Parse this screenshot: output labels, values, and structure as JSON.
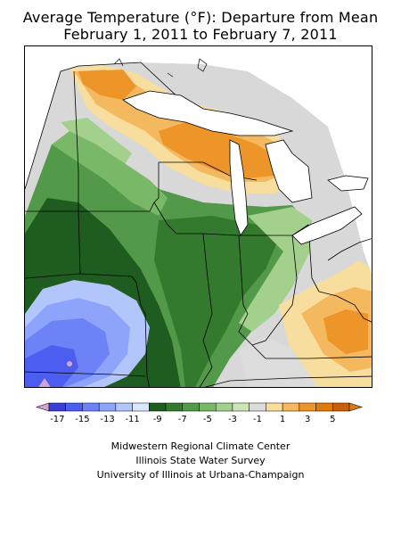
{
  "title": {
    "line1": "Average Temperature (°F): Departure from Mean",
    "line2": "February 1, 2011 to February 7, 2011"
  },
  "legend": {
    "ticks": [
      "-17",
      "-15",
      "-13",
      "-11",
      "-9",
      "-7",
      "-5",
      "-3",
      "-1",
      "1",
      "3",
      "5"
    ],
    "colors": [
      "#3a3ed8",
      "#4c5ef0",
      "#6c82f6",
      "#8ea4fa",
      "#b2c6fc",
      "#d8e6fe",
      "#1f5c1f",
      "#347a2e",
      "#529a49",
      "#78b867",
      "#a3d08d",
      "#cbe5b7",
      "#dcdcdc",
      "#f7dd9e",
      "#f4b85f",
      "#ee952a",
      "#e07a0a",
      "#c8600a"
    ],
    "low_end_color": "#d6a4d4",
    "high_end_color": "#e07a0a"
  },
  "credits": {
    "line1": "Midwestern Regional Climate Center",
    "line2": "Illinois State Water Survey",
    "line3": "University of Illinois at Urbana-Champaign"
  }
}
